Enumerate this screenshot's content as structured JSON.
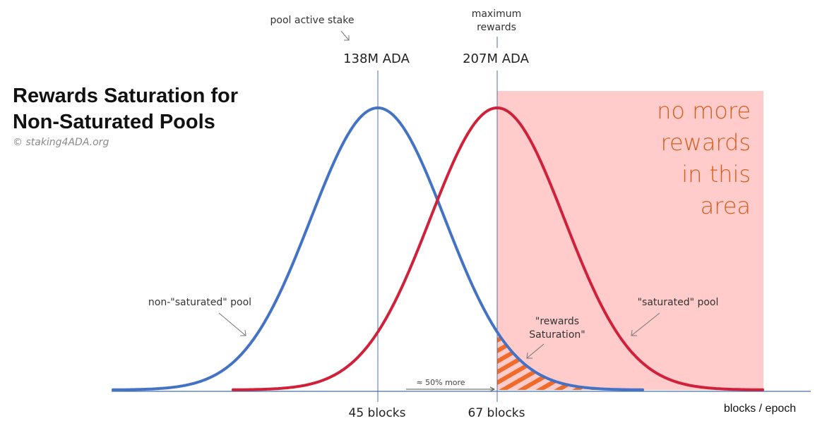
{
  "title": {
    "line1": "Rewards Saturation for",
    "line2": "Non-Saturated Pools",
    "credit": "© staking4ADA.org"
  },
  "labels": {
    "pool_active_stake": "pool active stake",
    "maximum_rewards_line1": "maximum",
    "maximum_rewards_line2": "rewards",
    "stake_value": "138M ADA",
    "max_value": "207M ADA",
    "no_rewards_line1": "no more",
    "no_rewards_line2": "rewards",
    "no_rewards_line3": "in this",
    "no_rewards_line4": "area",
    "non_saturated_pool": "non-\"saturated\" pool",
    "saturated_pool": "\"saturated\" pool",
    "rewards_saturation_line1": "\"rewards",
    "rewards_saturation_line2": "Saturation\"",
    "more_note": "≈ 50% more",
    "blocks_45": "45 blocks",
    "blocks_67": "67 blocks",
    "axis_label": "blocks / epoch"
  },
  "chart_data": {
    "type": "line",
    "xlabel": "blocks / epoch",
    "ylabel": "",
    "series": [
      {
        "name": "non-\"saturated\" pool",
        "mean": 45,
        "color": "#4472c4"
      },
      {
        "name": "\"saturated\" pool",
        "mean": 67,
        "color": "#d0213a"
      }
    ],
    "markers": [
      {
        "x": 45,
        "label": "45 blocks",
        "stake": "138M ADA"
      },
      {
        "x": 67,
        "label": "67 blocks",
        "stake": "207M ADA"
      }
    ],
    "no_rewards_region_from": 67
  },
  "colors": {
    "blue_curve": "#4472c4",
    "red_curve": "#d0213a",
    "pink_region": "#ffcbcb",
    "orange_text": "#d35f1f",
    "hatch": "#f06a2a",
    "axis": "#4a6fb0"
  }
}
